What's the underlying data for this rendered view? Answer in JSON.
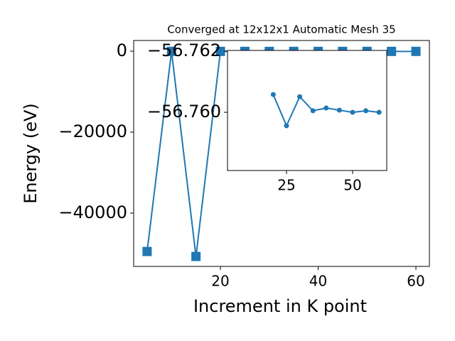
{
  "chart_data": [
    {
      "type": "line",
      "title": "Converged at 12x12x1 Automatic Mesh 35",
      "x_label": "Increment in K point",
      "y_label": "Energy (eV)",
      "x": [
        5,
        10,
        15,
        20,
        25,
        30,
        35,
        40,
        45,
        50,
        55,
        60
      ],
      "series": [
        {
          "color": "#1f77b4",
          "marker": "square",
          "values": [
            -49474,
            -56.76,
            -50702,
            -56.7606,
            -56.7596,
            -56.7605,
            -56.7601,
            -56.7601,
            -56.7601,
            -56.76,
            -56.7601,
            -56.7601
          ]
        }
      ],
      "xlim": [
        2.25,
        62.76
      ],
      "ylim": [
        -53158,
        2632
      ],
      "xticks": [
        20,
        40,
        60
      ],
      "yticks": [
        0,
        {
          "value": -20000,
          "label": "−20000"
        },
        {
          "value": -40000,
          "label": "−40000"
        }
      ]
    },
    {
      "type": "line",
      "x": [
        20,
        25,
        30,
        35,
        40,
        45,
        50,
        55,
        60
      ],
      "series": [
        {
          "color": "#1f77b4",
          "marker": "circle",
          "values": [
            -56.76058,
            -56.75956,
            -56.76051,
            -56.76005,
            -56.76014,
            -56.76007,
            -56.76,
            -56.76005,
            -56.76
          ]
        }
      ],
      "xlim": [
        2.7,
        62.9
      ],
      "ylim": [
        -56.7581,
        -56.76202
      ],
      "xticks": [
        25,
        50
      ],
      "yticks": [
        {
          "value": -56.762,
          "label": "−56.762"
        },
        {
          "value": -56.76,
          "label": "−56.760"
        }
      ]
    }
  ]
}
